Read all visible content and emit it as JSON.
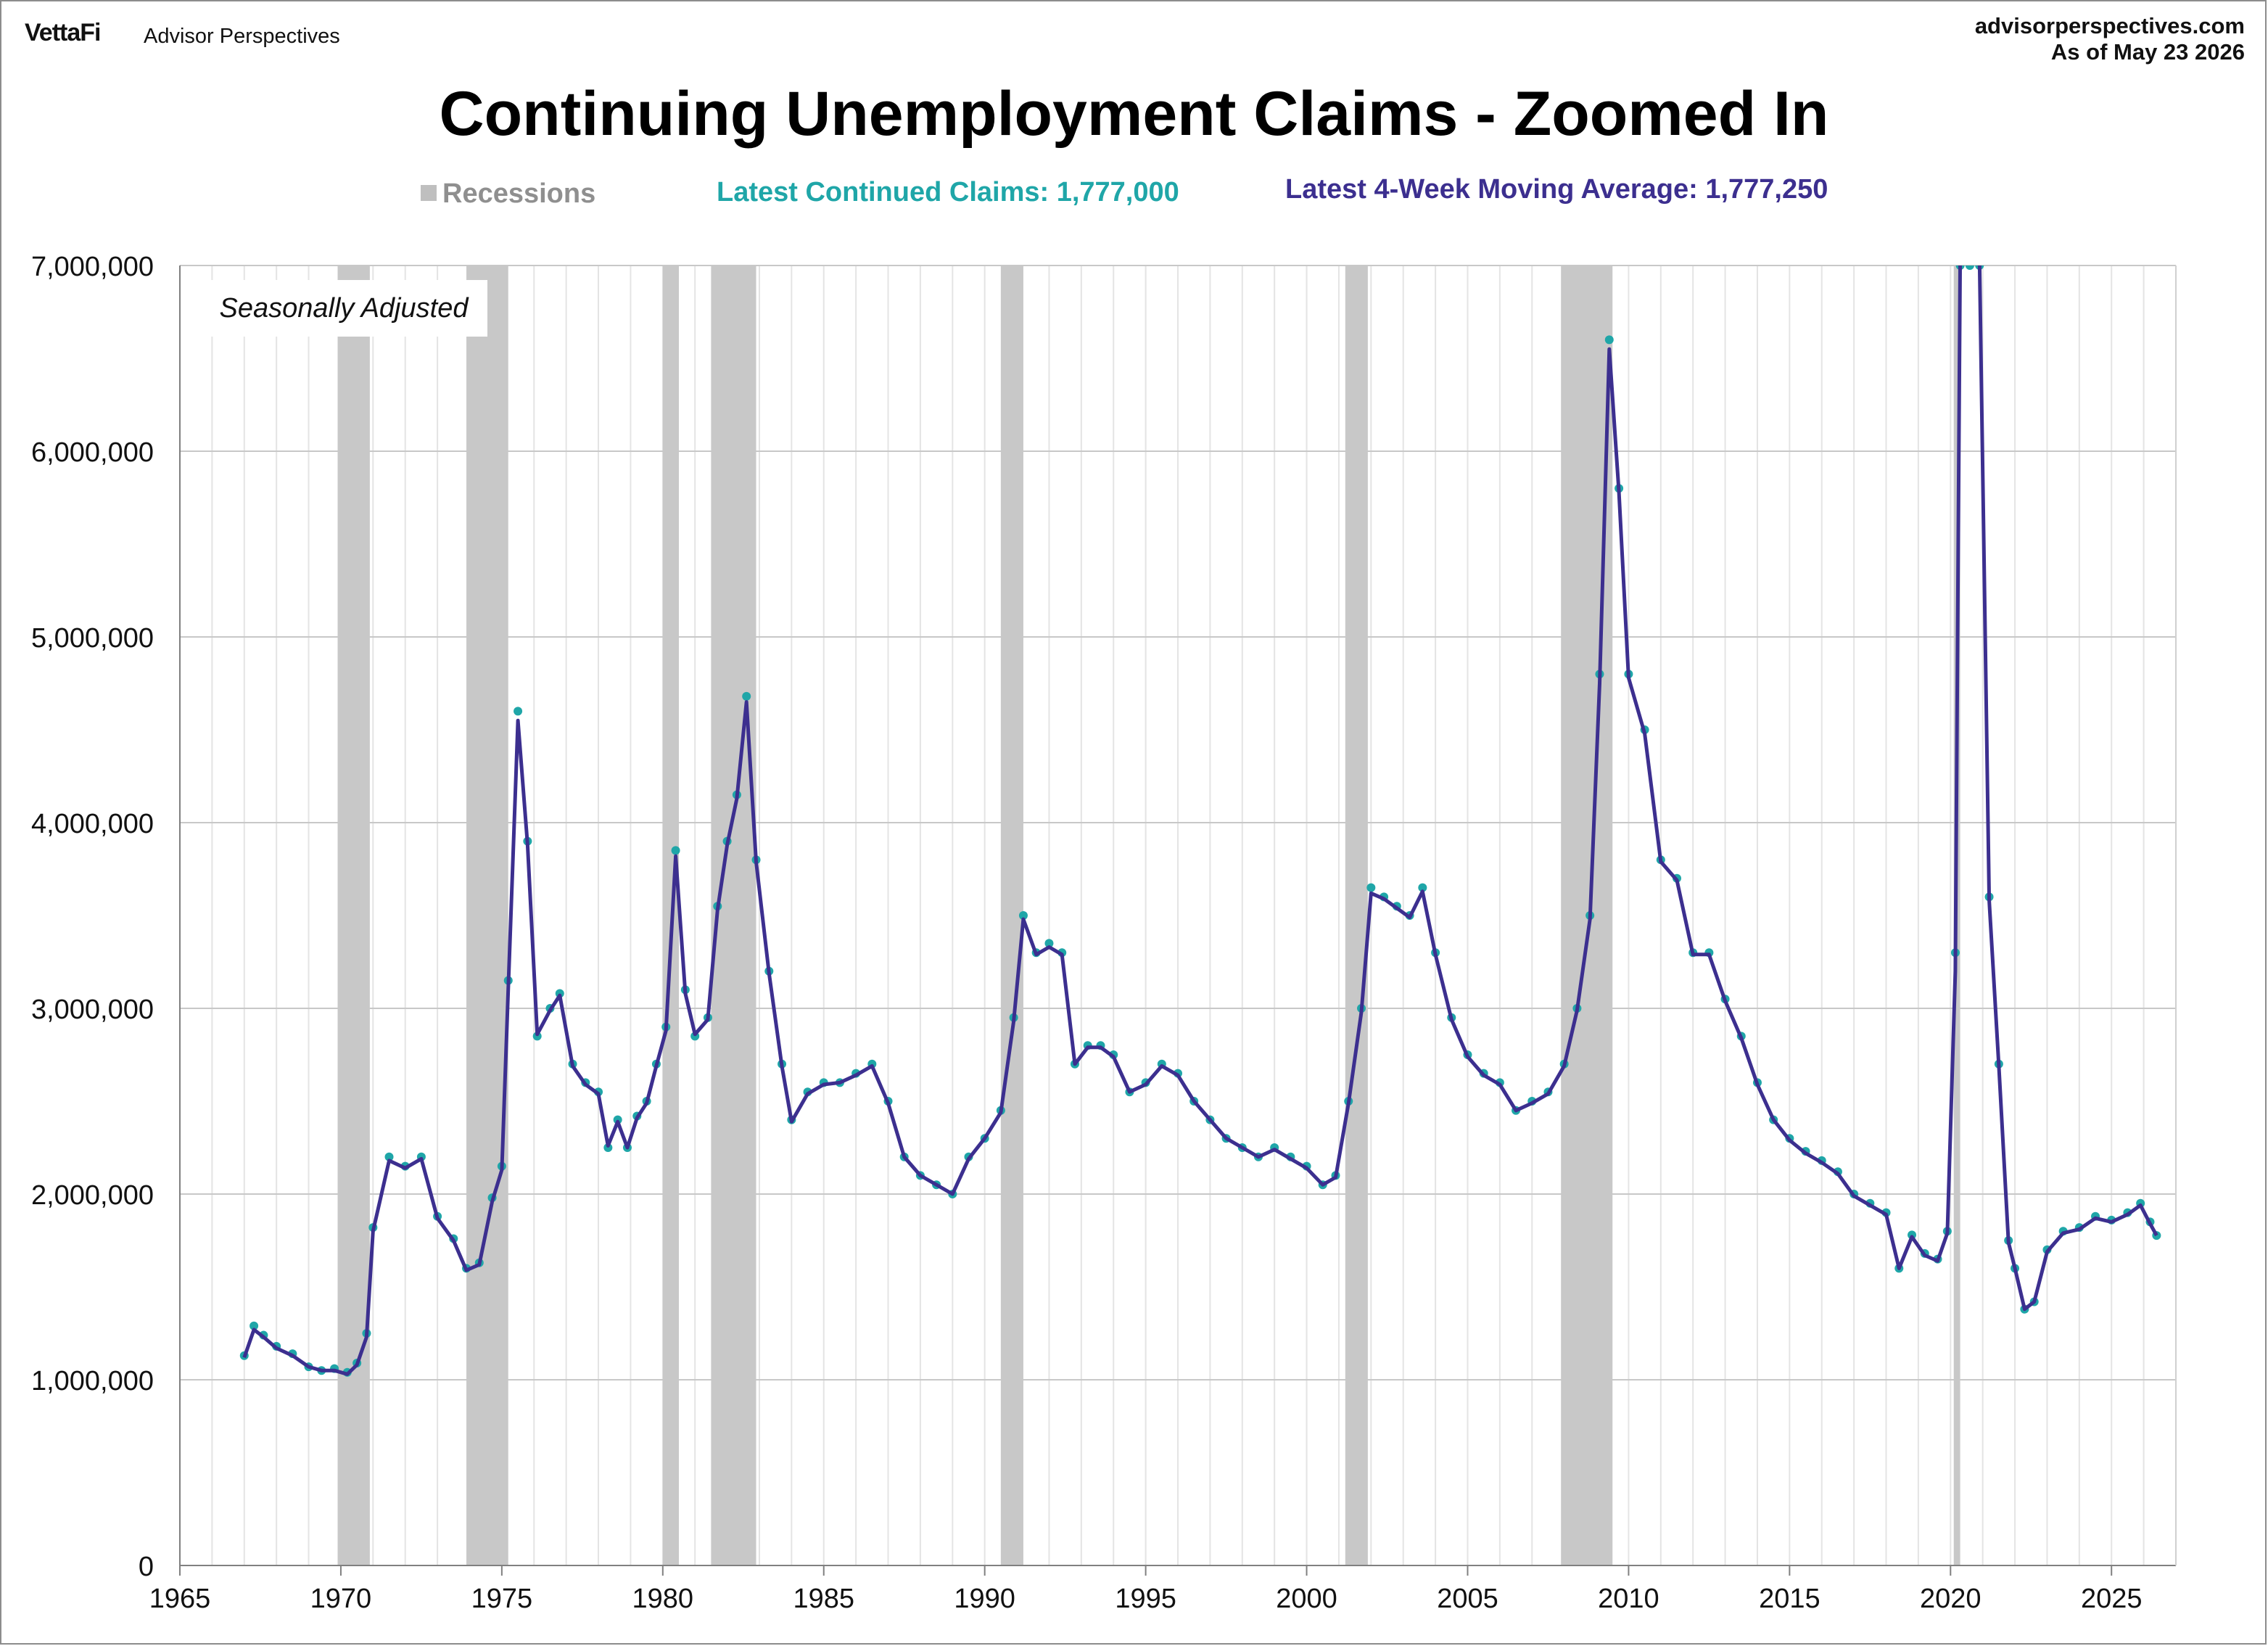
{
  "header": {
    "logo_vettafi": "VettaFi",
    "logo_ap": "Advisor Perspectives",
    "site": "advisorperspectives.com",
    "as_of": "As of May 23 2026"
  },
  "legend": {
    "recessions": "Recessions",
    "latest_claims": "Latest Continued Claims: 1,777,000",
    "latest_ma": "Latest 4-Week Moving Average: 1,777,250"
  },
  "colors": {
    "claims": "#1fa6a8",
    "moving_average": "#3c2f8f",
    "recession": "#c8c8c8",
    "grid": "#c8c8c8"
  },
  "chart_data": {
    "type": "line",
    "title": "Continuing Unemployment Claims - Zoomed In",
    "annotation": "Seasonally Adjusted",
    "xlabel": "",
    "ylabel": "",
    "xlim": [
      1965,
      2027
    ],
    "ylim": [
      0,
      7000000
    ],
    "x_ticks": [
      1965,
      1970,
      1975,
      1980,
      1985,
      1990,
      1995,
      2000,
      2005,
      2010,
      2015,
      2020,
      2025
    ],
    "y_ticks": [
      0,
      1000000,
      2000000,
      3000000,
      4000000,
      5000000,
      6000000,
      7000000
    ],
    "y_tick_labels": [
      "0",
      "1,000,000",
      "2,000,000",
      "3,000,000",
      "4,000,000",
      "5,000,000",
      "6,000,000",
      "7,000,000"
    ],
    "grid": true,
    "recessions": [
      [
        1969.9,
        1970.9
      ],
      [
        1973.9,
        1975.2
      ],
      [
        1980.0,
        1980.5
      ],
      [
        1981.5,
        1982.9
      ],
      [
        1990.5,
        1991.2
      ],
      [
        2001.2,
        2001.9
      ],
      [
        2007.9,
        2009.5
      ],
      [
        2020.1,
        2020.3
      ]
    ],
    "series": [
      {
        "name": "Latest Continued Claims",
        "style": "points",
        "x": [
          1967.0,
          1967.3,
          1967.6,
          1968.0,
          1968.5,
          1969.0,
          1969.4,
          1969.8,
          1970.2,
          1970.5,
          1970.8,
          1971.0,
          1971.5,
          1972.0,
          1972.5,
          1973.0,
          1973.5,
          1973.9,
          1974.3,
          1974.7,
          1975.0,
          1975.2,
          1975.5,
          1975.8,
          1976.1,
          1976.5,
          1976.8,
          1977.2,
          1977.6,
          1978.0,
          1978.3,
          1978.6,
          1978.9,
          1979.2,
          1979.5,
          1979.8,
          1980.1,
          1980.4,
          1980.7,
          1981.0,
          1981.4,
          1981.7,
          1982.0,
          1982.3,
          1982.6,
          1982.9,
          1983.3,
          1983.7,
          1984.0,
          1984.5,
          1985.0,
          1985.5,
          1986.0,
          1986.5,
          1987.0,
          1987.5,
          1988.0,
          1988.5,
          1989.0,
          1989.5,
          1990.0,
          1990.5,
          1990.9,
          1991.2,
          1991.6,
          1992.0,
          1992.4,
          1992.8,
          1993.2,
          1993.6,
          1994.0,
          1994.5,
          1995.0,
          1995.5,
          1996.0,
          1996.5,
          1997.0,
          1997.5,
          1998.0,
          1998.5,
          1999.0,
          1999.5,
          2000.0,
          2000.5,
          2000.9,
          2001.3,
          2001.7,
          2002.0,
          2002.4,
          2002.8,
          2003.2,
          2003.6,
          2004.0,
          2004.5,
          2005.0,
          2005.5,
          2006.0,
          2006.5,
          2007.0,
          2007.5,
          2008.0,
          2008.4,
          2008.8,
          2009.1,
          2009.4,
          2009.7,
          2010.0,
          2010.5,
          2011.0,
          2011.5,
          2012.0,
          2012.5,
          2013.0,
          2013.5,
          2014.0,
          2014.5,
          2015.0,
          2015.5,
          2016.0,
          2016.5,
          2017.0,
          2017.5,
          2018.0,
          2018.4,
          2018.8,
          2019.2,
          2019.6,
          2019.9,
          2020.15,
          2020.3,
          2020.6,
          2020.9,
          2021.2,
          2021.5,
          2021.8,
          2022.0,
          2022.3,
          2022.6,
          2023.0,
          2023.5,
          2024.0,
          2024.5,
          2025.0,
          2025.5,
          2025.9,
          2026.2,
          2026.4
        ],
        "values": [
          1130000,
          1290000,
          1240000,
          1180000,
          1140000,
          1070000,
          1050000,
          1060000,
          1040000,
          1090000,
          1250000,
          1820000,
          2200000,
          2150000,
          2200000,
          1880000,
          1760000,
          1600000,
          1630000,
          1980000,
          2150000,
          3150000,
          4600000,
          3900000,
          2850000,
          3000000,
          3080000,
          2700000,
          2600000,
          2550000,
          2250000,
          2400000,
          2250000,
          2420000,
          2500000,
          2700000,
          2900000,
          3850000,
          3100000,
          2850000,
          2950000,
          3550000,
          3900000,
          4150000,
          4680000,
          3800000,
          3200000,
          2700000,
          2400000,
          2550000,
          2600000,
          2600000,
          2650000,
          2700000,
          2500000,
          2200000,
          2100000,
          2050000,
          2000000,
          2200000,
          2300000,
          2450000,
          2950000,
          3500000,
          3300000,
          3350000,
          3300000,
          2700000,
          2800000,
          2800000,
          2750000,
          2550000,
          2600000,
          2700000,
          2650000,
          2500000,
          2400000,
          2300000,
          2250000,
          2200000,
          2250000,
          2200000,
          2150000,
          2050000,
          2100000,
          2500000,
          3000000,
          3650000,
          3600000,
          3550000,
          3500000,
          3650000,
          3300000,
          2950000,
          2750000,
          2650000,
          2600000,
          2450000,
          2500000,
          2550000,
          2700000,
          3000000,
          3500000,
          4800000,
          6600000,
          5800000,
          4800000,
          4500000,
          3800000,
          3700000,
          3300000,
          3300000,
          3050000,
          2850000,
          2600000,
          2400000,
          2300000,
          2230000,
          2180000,
          2120000,
          2000000,
          1950000,
          1900000,
          1600000,
          1780000,
          1680000,
          1650000,
          1800000,
          3300000,
          7100000,
          7100000,
          7100000,
          3600000,
          2700000,
          1750000,
          1600000,
          1380000,
          1420000,
          1700000,
          1800000,
          1820000,
          1880000,
          1860000,
          1900000,
          1950000,
          1850000,
          1777000
        ]
      },
      {
        "name": "Latest 4-Week Moving Average",
        "style": "line",
        "x": [
          1967.0,
          1967.3,
          1967.6,
          1968.0,
          1968.5,
          1969.0,
          1969.4,
          1969.8,
          1970.2,
          1970.5,
          1970.8,
          1971.0,
          1971.5,
          1972.0,
          1972.5,
          1973.0,
          1973.5,
          1973.9,
          1974.3,
          1974.7,
          1975.0,
          1975.2,
          1975.5,
          1975.8,
          1976.1,
          1976.5,
          1976.8,
          1977.2,
          1977.6,
          1978.0,
          1978.3,
          1978.6,
          1978.9,
          1979.2,
          1979.5,
          1979.8,
          1980.1,
          1980.4,
          1980.7,
          1981.0,
          1981.4,
          1981.7,
          1982.0,
          1982.3,
          1982.6,
          1982.9,
          1983.3,
          1983.7,
          1984.0,
          1984.5,
          1985.0,
          1985.5,
          1986.0,
          1986.5,
          1987.0,
          1987.5,
          1988.0,
          1988.5,
          1989.0,
          1989.5,
          1990.0,
          1990.5,
          1990.9,
          1991.2,
          1991.6,
          1992.0,
          1992.4,
          1992.8,
          1993.2,
          1993.6,
          1994.0,
          1994.5,
          1995.0,
          1995.5,
          1996.0,
          1996.5,
          1997.0,
          1997.5,
          1998.0,
          1998.5,
          1999.0,
          1999.5,
          2000.0,
          2000.5,
          2000.9,
          2001.3,
          2001.7,
          2002.0,
          2002.4,
          2002.8,
          2003.2,
          2003.6,
          2004.0,
          2004.5,
          2005.0,
          2005.5,
          2006.0,
          2006.5,
          2007.0,
          2007.5,
          2008.0,
          2008.4,
          2008.8,
          2009.1,
          2009.4,
          2009.7,
          2010.0,
          2010.5,
          2011.0,
          2011.5,
          2012.0,
          2012.5,
          2013.0,
          2013.5,
          2014.0,
          2014.5,
          2015.0,
          2015.5,
          2016.0,
          2016.5,
          2017.0,
          2017.5,
          2018.0,
          2018.4,
          2018.8,
          2019.2,
          2019.6,
          2019.9,
          2020.15,
          2020.3,
          2020.6,
          2020.9,
          2021.2,
          2021.5,
          2021.8,
          2022.0,
          2022.3,
          2022.6,
          2023.0,
          2023.5,
          2024.0,
          2024.5,
          2025.0,
          2025.5,
          2025.9,
          2026.2,
          2026.4
        ],
        "values": [
          1120000,
          1270000,
          1230000,
          1170000,
          1130000,
          1070000,
          1050000,
          1050000,
          1030000,
          1080000,
          1230000,
          1800000,
          2180000,
          2140000,
          2190000,
          1870000,
          1750000,
          1590000,
          1620000,
          1960000,
          2130000,
          3100000,
          4550000,
          3880000,
          2860000,
          2990000,
          3070000,
          2690000,
          2590000,
          2540000,
          2260000,
          2390000,
          2250000,
          2410000,
          2490000,
          2690000,
          2880000,
          3820000,
          3080000,
          2860000,
          2940000,
          3530000,
          3880000,
          4130000,
          4650000,
          3790000,
          3190000,
          2690000,
          2390000,
          2540000,
          2590000,
          2600000,
          2640000,
          2690000,
          2490000,
          2200000,
          2100000,
          2050000,
          2000000,
          2190000,
          2300000,
          2440000,
          2930000,
          3480000,
          3290000,
          3330000,
          3290000,
          2700000,
          2790000,
          2790000,
          2740000,
          2550000,
          2590000,
          2690000,
          2640000,
          2500000,
          2400000,
          2300000,
          2250000,
          2200000,
          2240000,
          2190000,
          2140000,
          2050000,
          2090000,
          2490000,
          2980000,
          3620000,
          3590000,
          3540000,
          3490000,
          3630000,
          3290000,
          2940000,
          2740000,
          2640000,
          2590000,
          2450000,
          2490000,
          2540000,
          2690000,
          2990000,
          3480000,
          4750000,
          6550000,
          5780000,
          4780000,
          4480000,
          3790000,
          3690000,
          3290000,
          3290000,
          3040000,
          2840000,
          2590000,
          2400000,
          2290000,
          2220000,
          2170000,
          2110000,
          1990000,
          1940000,
          1890000,
          1600000,
          1770000,
          1670000,
          1640000,
          1790000,
          3200000,
          7100000,
          7100000,
          7100000,
          3580000,
          2690000,
          1740000,
          1600000,
          1380000,
          1420000,
          1690000,
          1790000,
          1810000,
          1870000,
          1850000,
          1890000,
          1940000,
          1840000,
          1777250
        ]
      }
    ]
  }
}
